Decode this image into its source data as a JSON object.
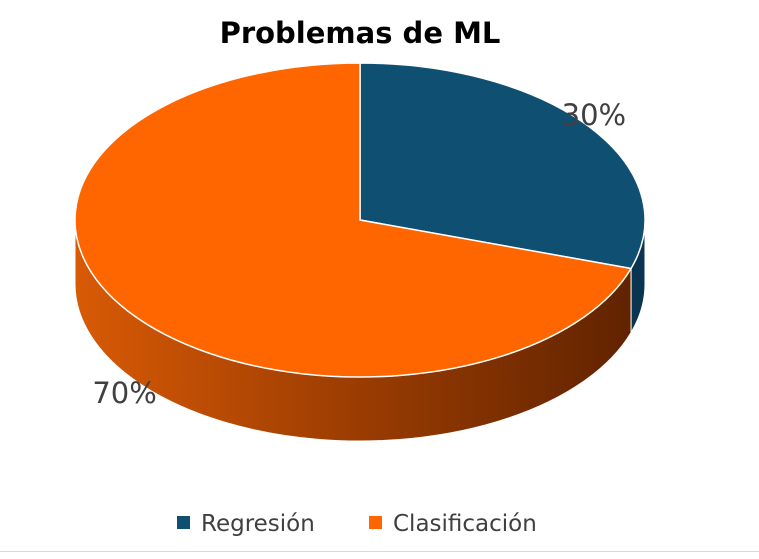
{
  "chart_data": {
    "type": "pie",
    "title": "Problemas de ML",
    "categories": [
      "Regresión",
      "Clasificación"
    ],
    "values": [
      30,
      70
    ],
    "labels": [
      "30%",
      "70%"
    ],
    "colors": [
      "#0e4f72",
      "#ff6600"
    ],
    "side_colors": [
      "#093550",
      "#b34600"
    ],
    "legend_placement": "bottom",
    "style": "3d"
  }
}
